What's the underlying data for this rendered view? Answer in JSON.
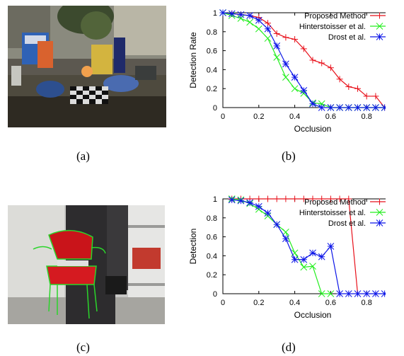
{
  "panels": {
    "a": "(a)",
    "b": "(b)",
    "c": "(c)",
    "d": "(d)"
  },
  "colors": {
    "proposed": "#e8101a",
    "hinterstoisser": "#23ee1e",
    "drost": "#0d16e8"
  },
  "chart_data": [
    {
      "type": "line",
      "xlabel": "Occlusion",
      "ylabel": "Detection Rate",
      "xlim": [
        0,
        1
      ],
      "ylim": [
        0,
        1
      ],
      "xticks": [
        "0",
        "0.2",
        "0.4",
        "0.6",
        "0.8",
        "1"
      ],
      "yticks": [
        "0",
        "0.2",
        "0.4",
        "0.6",
        "0.8",
        "1"
      ],
      "legend": "top-right",
      "grid": false,
      "series": [
        {
          "name": "Proposed Method",
          "color": "#e8101a",
          "marker": "plus",
          "x": [
            0,
            0.05,
            0.1,
            0.15,
            0.2,
            0.25,
            0.3,
            0.35,
            0.4,
            0.45,
            0.5,
            0.55,
            0.6,
            0.65,
            0.7,
            0.75,
            0.8,
            0.85,
            0.9,
            0.95
          ],
          "y": [
            1,
            0.99,
            0.98,
            0.97,
            0.95,
            0.89,
            0.78,
            0.74,
            0.72,
            0.62,
            0.5,
            0.47,
            0.42,
            0.3,
            0.22,
            0.2,
            0.12,
            0.12,
            0,
            0
          ]
        },
        {
          "name": "Hinterstoisser et al.",
          "color": "#23ee1e",
          "marker": "x",
          "x": [
            0,
            0.05,
            0.1,
            0.15,
            0.2,
            0.25,
            0.3,
            0.35,
            0.4,
            0.45,
            0.5,
            0.55,
            0.6,
            0.65,
            0.7,
            0.75,
            0.8,
            0.85,
            0.9,
            0.95
          ],
          "y": [
            1,
            0.97,
            0.94,
            0.9,
            0.83,
            0.73,
            0.53,
            0.32,
            0.2,
            0.15,
            0.05,
            0.04,
            0,
            0,
            0,
            0,
            0,
            0,
            0,
            0
          ]
        },
        {
          "name": "Drost et al.",
          "color": "#0d16e8",
          "marker": "star",
          "x": [
            0,
            0.05,
            0.1,
            0.15,
            0.2,
            0.25,
            0.3,
            0.35,
            0.4,
            0.45,
            0.5,
            0.55,
            0.6,
            0.65,
            0.7,
            0.75,
            0.8,
            0.85,
            0.9,
            0.95
          ],
          "y": [
            1,
            0.99,
            0.98,
            0.97,
            0.92,
            0.83,
            0.65,
            0.46,
            0.32,
            0.18,
            0.04,
            0,
            0,
            0,
            0,
            0,
            0,
            0,
            0,
            0
          ]
        }
      ]
    },
    {
      "type": "line",
      "xlabel": "Occlusion",
      "ylabel": "Detection",
      "xlim": [
        0,
        1
      ],
      "ylim": [
        0,
        1
      ],
      "xticks": [
        "0",
        "0.2",
        "0.4",
        "0.6",
        "0.8",
        "1"
      ],
      "yticks": [
        "0",
        "0.2",
        "0.4",
        "0.6",
        "0.8",
        "1"
      ],
      "legend": "top-right",
      "grid": false,
      "series": [
        {
          "name": "Proposed Method",
          "color": "#e8101a",
          "marker": "plus",
          "x": [
            0.05,
            0.1,
            0.15,
            0.2,
            0.25,
            0.3,
            0.35,
            0.4,
            0.45,
            0.5,
            0.55,
            0.6,
            0.65,
            0.7,
            0.75
          ],
          "y": [
            1,
            1,
            1,
            1,
            1,
            1,
            1,
            1,
            1,
            1,
            1,
            1,
            1,
            1,
            0
          ]
        },
        {
          "name": "Hinterstoisser et al.",
          "color": "#23ee1e",
          "marker": "x",
          "x": [
            0.05,
            0.1,
            0.15,
            0.2,
            0.25,
            0.3,
            0.35,
            0.4,
            0.45,
            0.5,
            0.55,
            0.6
          ],
          "y": [
            1,
            0.99,
            0.95,
            0.89,
            0.82,
            0.73,
            0.65,
            0.43,
            0.28,
            0.29,
            0,
            0
          ]
        },
        {
          "name": "Drost et al.",
          "color": "#0d16e8",
          "marker": "star",
          "x": [
            0.05,
            0.1,
            0.15,
            0.2,
            0.25,
            0.3,
            0.35,
            0.4,
            0.45,
            0.5,
            0.55,
            0.6,
            0.65,
            0.7,
            0.75,
            0.8,
            0.85,
            0.9,
            0.95
          ],
          "y": [
            0.99,
            0.98,
            0.96,
            0.92,
            0.85,
            0.73,
            0.58,
            0.36,
            0.36,
            0.43,
            0.39,
            0.5,
            0,
            0,
            0,
            0,
            0,
            0,
            0
          ]
        }
      ]
    }
  ]
}
